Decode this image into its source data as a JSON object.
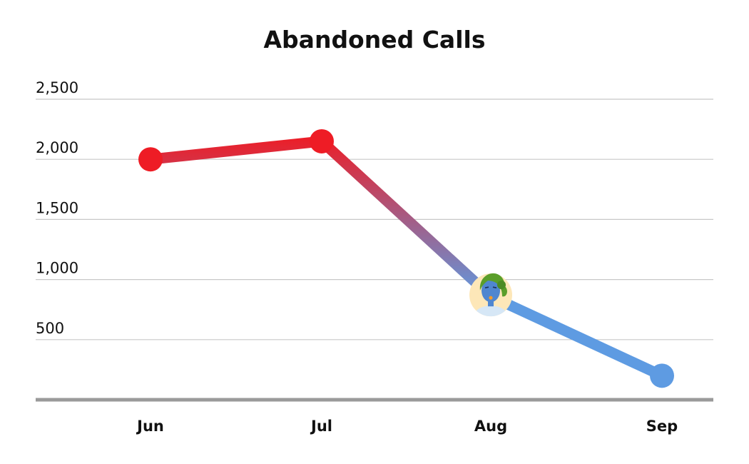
{
  "chart_data": {
    "type": "line",
    "title": "Abandoned Calls",
    "xlabel": "",
    "ylabel": "",
    "categories": [
      "Jun",
      "Jul",
      "Aug",
      "Sep"
    ],
    "series": [
      {
        "values": [
          2000,
          2150,
          860,
          200
        ]
      }
    ],
    "ylim": [
      0,
      2500
    ],
    "yticks": [
      500,
      1000,
      1500,
      2000,
      2500
    ],
    "ytick_labels": [
      "500",
      "1,000",
      "1,500",
      "2,000",
      "2,500"
    ],
    "grid": true,
    "legend": "none",
    "colors": {
      "start": "#ee1c25",
      "end": "#5e9be2",
      "grid": "#c8c8c8",
      "baseline": "#9a9a9a"
    },
    "marker_icon": "person-avatar-icon",
    "marker_index": 2
  }
}
